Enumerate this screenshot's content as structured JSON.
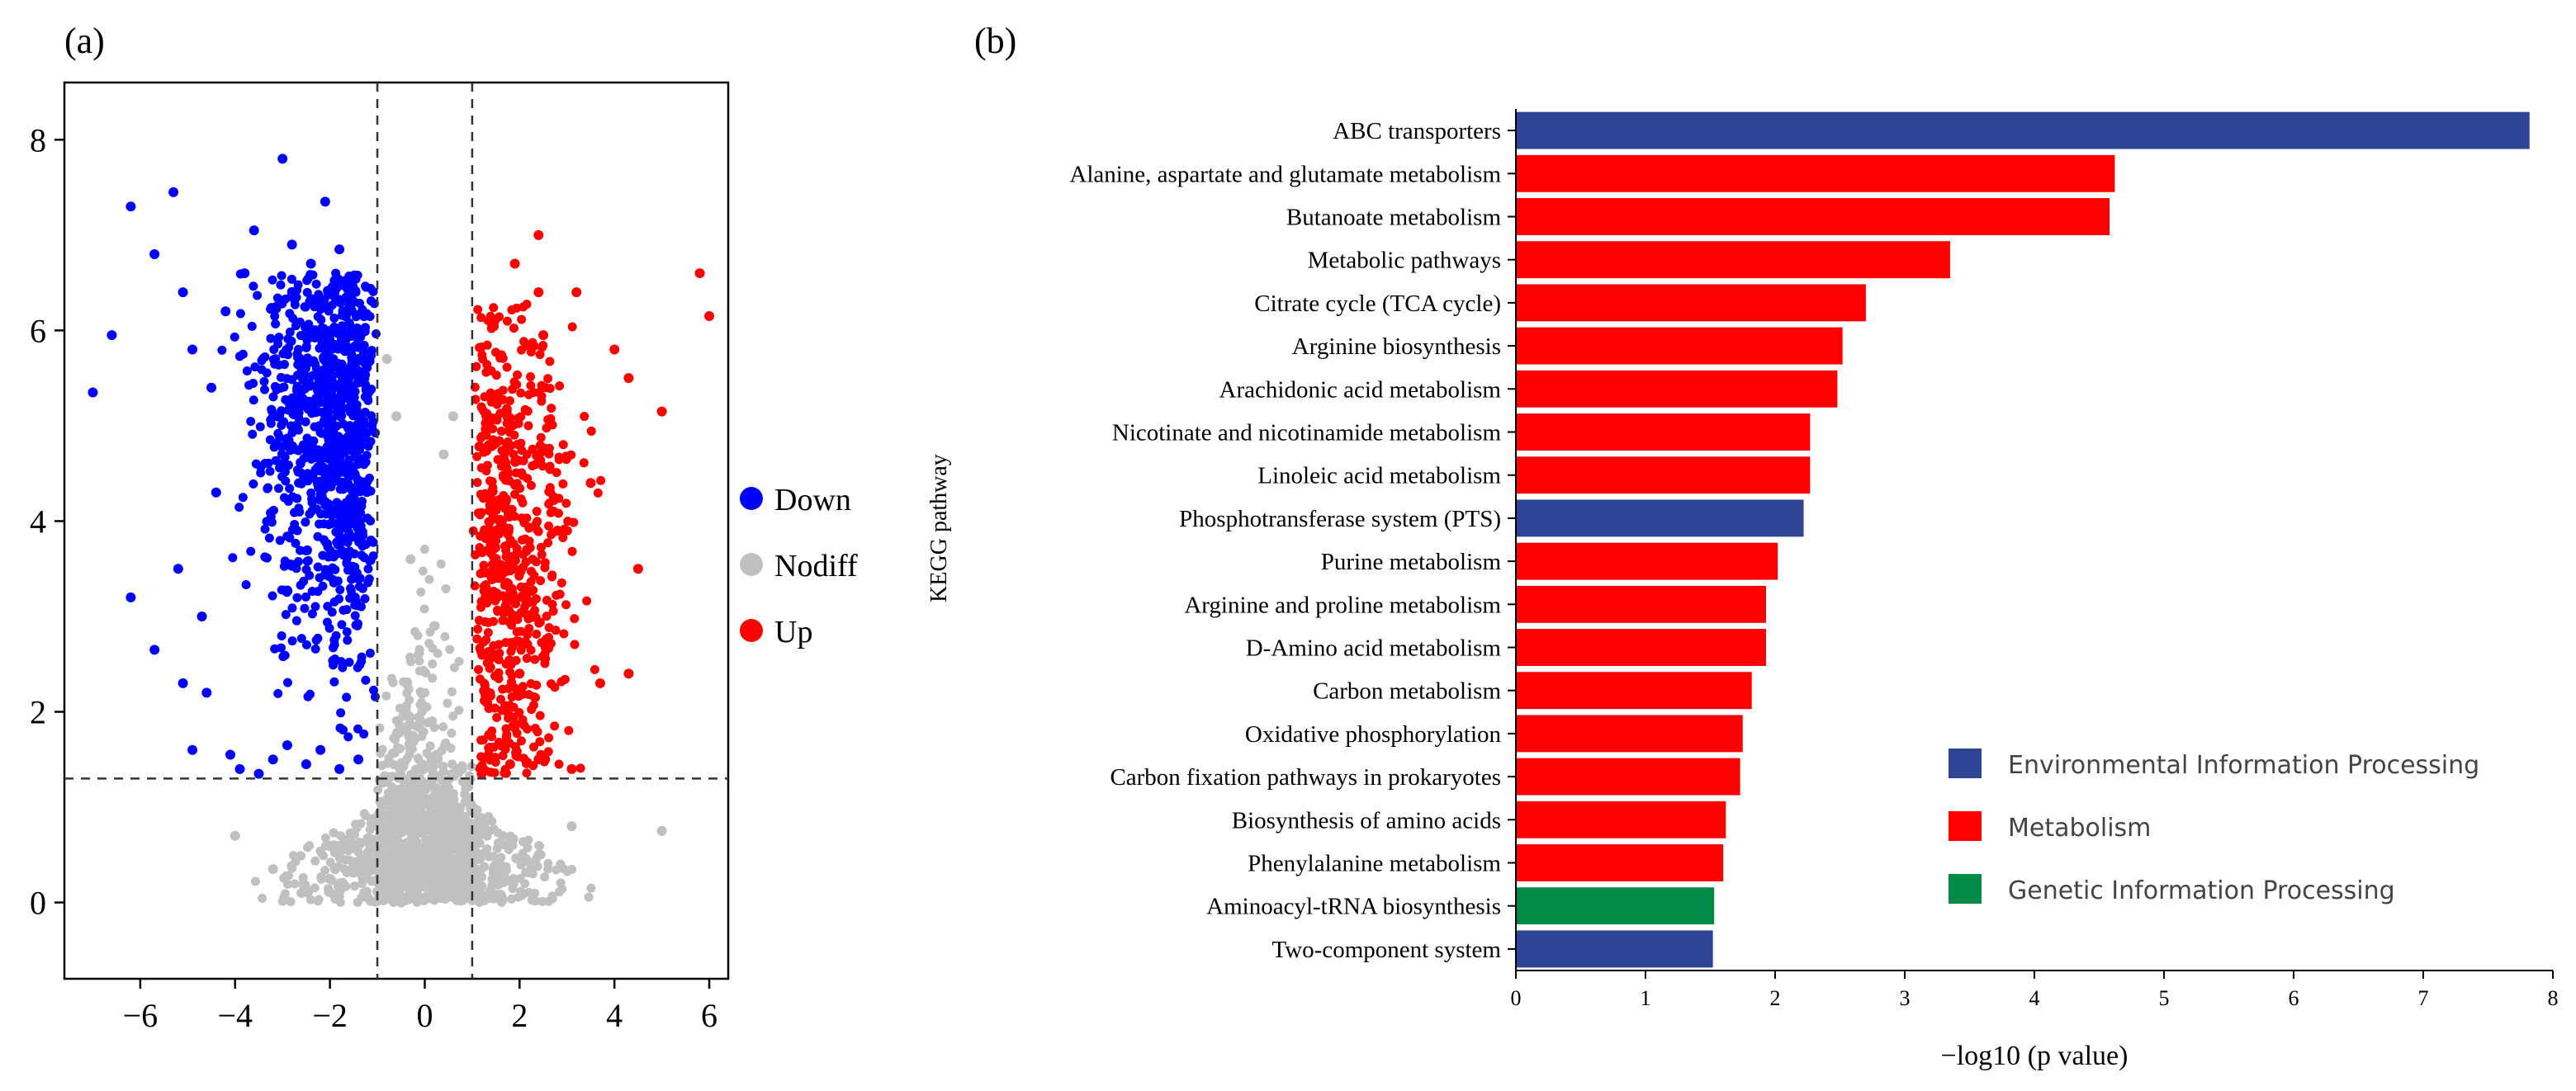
{
  "chart_data": [
    {
      "panel_label": "(a)",
      "type": "scatter",
      "title": "",
      "xlabel": "",
      "ylabel": "",
      "xlim": [
        -7.6,
        6.4
      ],
      "ylim": [
        -0.8,
        8.6
      ],
      "xticks": [
        -6,
        -4,
        -2,
        0,
        2,
        4,
        6
      ],
      "xtick_labels": [
        "−6",
        "−4",
        "−2",
        "0",
        "2",
        "4",
        "6"
      ],
      "yticks": [
        0,
        2,
        4,
        6,
        8
      ],
      "ytick_labels": [
        "0",
        "2",
        "4",
        "6",
        "8"
      ],
      "fold_change_thresholds": [
        -1,
        1
      ],
      "significance_threshold": 1.3,
      "legend": [
        {
          "label": "Down",
          "color": "#0000ff"
        },
        {
          "label": "Nodiff",
          "color": "#c0c0c0"
        },
        {
          "label": "Up",
          "color": "#ff0000"
        }
      ],
      "series": [
        {
          "name": "Down",
          "color": "#0000ff",
          "points": [
            [
              -7.0,
              5.35
            ],
            [
              -6.6,
              5.95
            ],
            [
              -6.2,
              7.3
            ],
            [
              -5.7,
              6.8
            ],
            [
              -5.3,
              7.45
            ],
            [
              -5.1,
              6.4
            ],
            [
              -4.9,
              5.8
            ],
            [
              -4.5,
              5.4
            ],
            [
              -4.2,
              6.2
            ],
            [
              -3.8,
              6.6
            ],
            [
              -3.6,
              7.05
            ],
            [
              -3.0,
              7.8
            ],
            [
              -2.8,
              6.9
            ],
            [
              -2.4,
              6.7
            ],
            [
              -2.1,
              7.35
            ],
            [
              -1.8,
              6.85
            ],
            [
              -1.5,
              6.3
            ],
            [
              -6.2,
              3.2
            ],
            [
              -5.7,
              2.65
            ],
            [
              -5.1,
              2.3
            ],
            [
              -4.9,
              1.6
            ],
            [
              -4.6,
              2.2
            ],
            [
              -4.1,
              1.55
            ],
            [
              -3.9,
              1.4
            ],
            [
              -4.7,
              3.0
            ],
            [
              -5.2,
              3.5
            ],
            [
              -4.4,
              4.3
            ],
            [
              -3.5,
              1.35
            ],
            [
              -3.2,
              1.5
            ],
            [
              -2.9,
              1.65
            ],
            [
              -2.5,
              1.45
            ],
            [
              -2.2,
              1.6
            ],
            [
              -1.8,
              1.4
            ],
            [
              -1.4,
              1.5
            ]
          ]
        },
        {
          "name": "Nodiff",
          "color": "#c0c0c0",
          "points": [
            [
              -4.0,
              0.7
            ],
            [
              -3.2,
              0.35
            ],
            [
              -2.6,
              0.1
            ],
            [
              -2.0,
              0.25
            ],
            [
              -1.2,
              0.05
            ],
            [
              -0.5,
              0.0
            ],
            [
              0.3,
              0.05
            ],
            [
              1.0,
              0.15
            ],
            [
              1.6,
              0.3
            ],
            [
              2.4,
              0.5
            ],
            [
              3.1,
              0.8
            ],
            [
              5.0,
              0.75
            ],
            [
              -0.8,
              5.7
            ],
            [
              -0.6,
              5.1
            ],
            [
              0.4,
              4.7
            ],
            [
              0.6,
              5.1
            ],
            [
              -0.3,
              3.6
            ],
            [
              0.2,
              2.9
            ],
            [
              0.5,
              1.2
            ],
            [
              -0.4,
              1.8
            ]
          ]
        },
        {
          "name": "Up",
          "color": "#ff0000",
          "points": [
            [
              1.3,
              5.1
            ],
            [
              1.9,
              6.7
            ],
            [
              2.4,
              6.4
            ],
            [
              2.5,
              5.95
            ],
            [
              2.4,
              7.0
            ],
            [
              3.2,
              6.4
            ],
            [
              4.0,
              5.8
            ],
            [
              4.3,
              5.5
            ],
            [
              5.0,
              5.15
            ],
            [
              5.8,
              6.6
            ],
            [
              6.0,
              6.15
            ],
            [
              4.5,
              3.5
            ],
            [
              4.3,
              2.4
            ],
            [
              3.7,
              2.3
            ],
            [
              3.1,
              1.4
            ],
            [
              2.4,
              1.5
            ],
            [
              1.8,
              1.45
            ],
            [
              1.2,
              1.35
            ],
            [
              3.5,
              4.4
            ],
            [
              2.0,
              2.4
            ],
            [
              1.5,
              3.2
            ],
            [
              2.8,
              3.9
            ]
          ]
        }
      ]
    },
    {
      "panel_label": "(b)",
      "type": "bar",
      "orientation": "horizontal",
      "title": "",
      "xlabel": "−log10 (p value)",
      "ylabel": "KEGG pathway",
      "xlim": [
        0,
        8
      ],
      "xticks": [
        0,
        1,
        2,
        3,
        4,
        5,
        6,
        7,
        8
      ],
      "categories": [
        "ABC transporters",
        "Alanine, aspartate and glutamate metabolism",
        "Butanoate metabolism",
        "Metabolic pathways",
        "Citrate cycle (TCA cycle)",
        "Arginine biosynthesis",
        "Arachidonic acid metabolism",
        "Nicotinate and nicotinamide metabolism",
        "Linoleic acid metabolism",
        "Phosphotransferase system (PTS)",
        "Purine metabolism",
        "Arginine and proline metabolism",
        "D-Amino acid metabolism",
        "Carbon metabolism",
        "Oxidative phosphorylation",
        "Carbon fixation pathways in prokaryotes",
        "Biosynthesis of amino acids",
        "Phenylalanine metabolism",
        "Aminoacyl-tRNA biosynthesis",
        "Two-component system"
      ],
      "values": [
        7.82,
        4.62,
        4.58,
        3.35,
        2.7,
        2.52,
        2.48,
        2.27,
        2.27,
        2.22,
        2.02,
        1.93,
        1.93,
        1.82,
        1.75,
        1.73,
        1.62,
        1.6,
        1.53,
        1.52
      ],
      "groups": [
        "Environmental Information Processing",
        "Metabolism",
        "Metabolism",
        "Metabolism",
        "Metabolism",
        "Metabolism",
        "Metabolism",
        "Metabolism",
        "Metabolism",
        "Environmental Information Processing",
        "Metabolism",
        "Metabolism",
        "Metabolism",
        "Metabolism",
        "Metabolism",
        "Metabolism",
        "Metabolism",
        "Metabolism",
        "Genetic Information Processing",
        "Environmental Information Processing"
      ],
      "legend": [
        {
          "label": "Environmental Information Processing",
          "color": "#2e4494"
        },
        {
          "label": "Metabolism",
          "color": "#ff0000"
        },
        {
          "label": "Genetic Information Processing",
          "color": "#008a45"
        }
      ]
    }
  ]
}
